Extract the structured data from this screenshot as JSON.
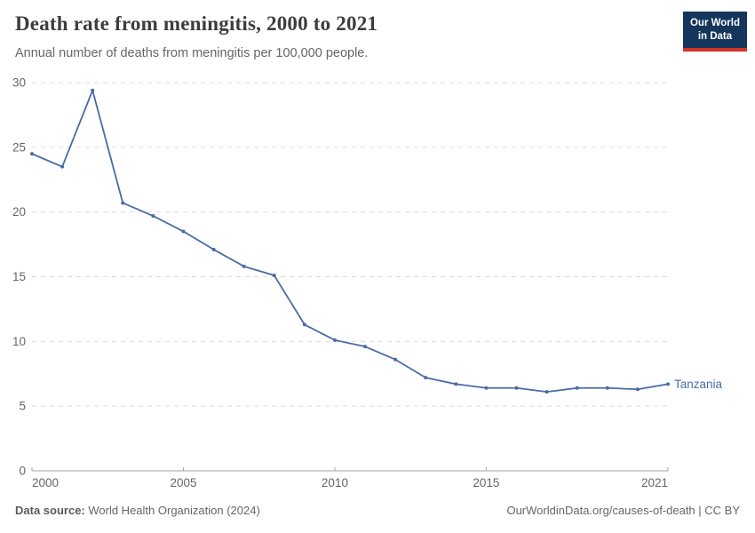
{
  "header": {
    "title": "Death rate from meningitis, 2000 to 2021",
    "subtitle": "Annual number of deaths from meningitis per 100,000 people.",
    "logo": {
      "line1": "Our World",
      "line2": "in Data",
      "bg_color": "#14355c",
      "accent_color": "#d0342c"
    }
  },
  "footer": {
    "source_label": "Data source:",
    "source_value": " World Health Organization (2024)",
    "attribution": "OurWorldinData.org/causes-of-death | CC BY"
  },
  "chart_data": {
    "type": "line",
    "title": "Death rate from meningitis, 2000 to 2021",
    "subtitle": "Annual number of deaths from meningitis per 100,000 people.",
    "x": [
      2000,
      2001,
      2002,
      2003,
      2004,
      2005,
      2006,
      2007,
      2008,
      2009,
      2010,
      2011,
      2012,
      2013,
      2014,
      2015,
      2016,
      2017,
      2018,
      2019,
      2020,
      2021
    ],
    "series": [
      {
        "name": "Tanzania",
        "color": "#4a6ba5",
        "values": [
          24.5,
          23.5,
          29.4,
          20.7,
          19.7,
          18.5,
          17.1,
          15.8,
          15.1,
          11.3,
          10.1,
          9.6,
          8.6,
          7.2,
          6.7,
          6.4,
          6.4,
          6.1,
          6.4,
          6.4,
          6.3,
          6.7
        ]
      }
    ],
    "xlabel": "",
    "ylabel": "",
    "xlim": [
      2000,
      2021
    ],
    "ylim": [
      0,
      30
    ],
    "y_ticks": [
      0,
      5,
      10,
      15,
      20,
      25,
      30
    ],
    "x_ticks": [
      2000,
      2005,
      2010,
      2015,
      2021
    ],
    "grid": "horizontal-dashed",
    "legend_position": "line-end-label",
    "grid_color": "#dcdcdc",
    "axis_color": "#a3a3a3",
    "tick_label_color": "#666666"
  }
}
